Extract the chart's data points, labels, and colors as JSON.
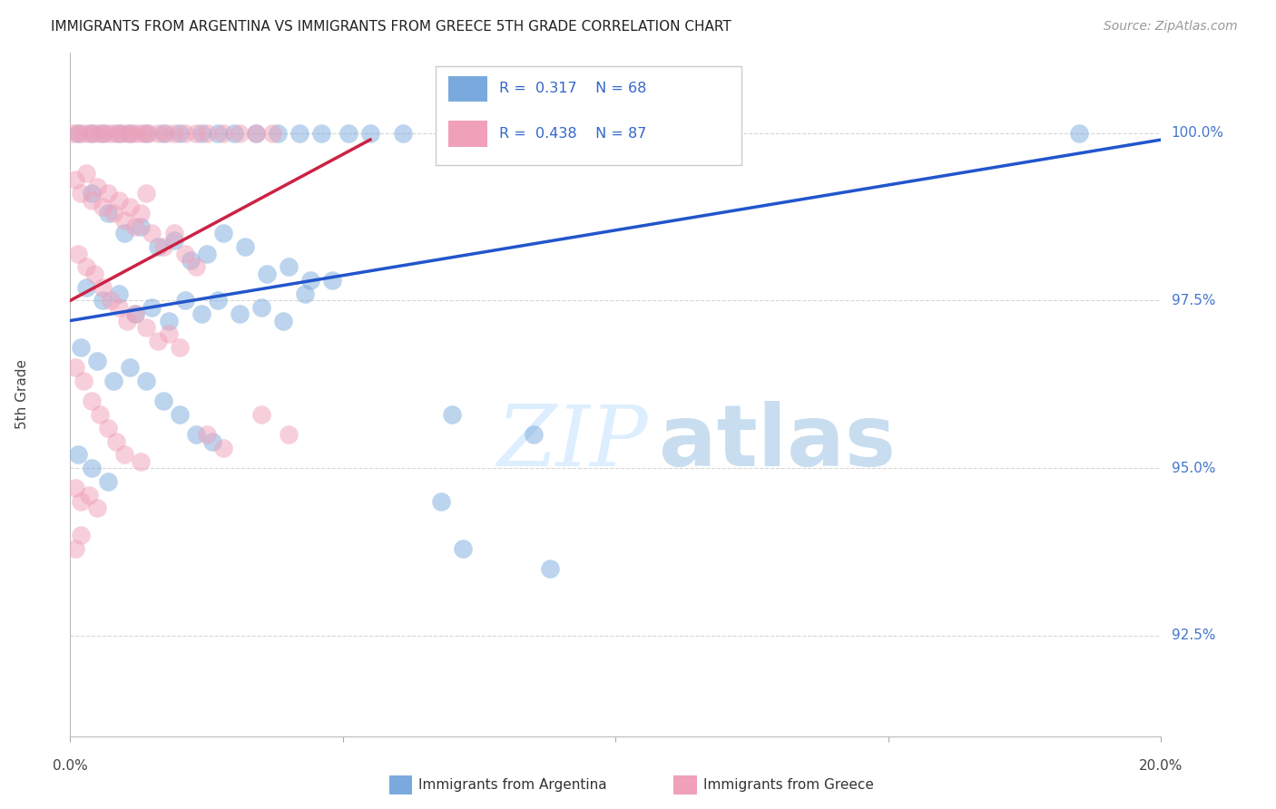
{
  "title": "IMMIGRANTS FROM ARGENTINA VS IMMIGRANTS FROM GREECE 5TH GRADE CORRELATION CHART",
  "source": "Source: ZipAtlas.com",
  "ylabel": "5th Grade",
  "yaxis_labels": [
    "92.5%",
    "95.0%",
    "97.5%",
    "100.0%"
  ],
  "yaxis_values": [
    92.5,
    95.0,
    97.5,
    100.0
  ],
  "xlim": [
    0.0,
    20.0
  ],
  "ylim": [
    91.0,
    101.2
  ],
  "legend_label_blue": "Immigrants from Argentina",
  "legend_label_pink": "Immigrants from Greece",
  "legend_R_blue": "R =  0.317",
  "legend_N_blue": "N = 68",
  "legend_R_pink": "R =  0.438",
  "legend_N_pink": "N = 87",
  "blue_scatter": [
    [
      0.15,
      100.0
    ],
    [
      0.4,
      100.0
    ],
    [
      0.6,
      100.0
    ],
    [
      0.9,
      100.0
    ],
    [
      1.1,
      100.0
    ],
    [
      1.4,
      100.0
    ],
    [
      1.7,
      100.0
    ],
    [
      2.0,
      100.0
    ],
    [
      2.4,
      100.0
    ],
    [
      2.7,
      100.0
    ],
    [
      3.0,
      100.0
    ],
    [
      3.4,
      100.0
    ],
    [
      3.8,
      100.0
    ],
    [
      4.2,
      100.0
    ],
    [
      4.6,
      100.0
    ],
    [
      5.1,
      100.0
    ],
    [
      5.5,
      100.0
    ],
    [
      6.1,
      100.0
    ],
    [
      18.5,
      100.0
    ],
    [
      0.4,
      99.1
    ],
    [
      0.7,
      98.8
    ],
    [
      1.0,
      98.5
    ],
    [
      1.3,
      98.6
    ],
    [
      1.6,
      98.3
    ],
    [
      1.9,
      98.4
    ],
    [
      2.2,
      98.1
    ],
    [
      2.5,
      98.2
    ],
    [
      2.8,
      98.5
    ],
    [
      3.2,
      98.3
    ],
    [
      3.6,
      97.9
    ],
    [
      4.0,
      98.0
    ],
    [
      4.4,
      97.8
    ],
    [
      4.8,
      97.8
    ],
    [
      0.3,
      97.7
    ],
    [
      0.6,
      97.5
    ],
    [
      0.9,
      97.6
    ],
    [
      1.2,
      97.3
    ],
    [
      1.5,
      97.4
    ],
    [
      1.8,
      97.2
    ],
    [
      2.1,
      97.5
    ],
    [
      2.4,
      97.3
    ],
    [
      2.7,
      97.5
    ],
    [
      3.1,
      97.3
    ],
    [
      3.5,
      97.4
    ],
    [
      3.9,
      97.2
    ],
    [
      4.3,
      97.6
    ],
    [
      0.2,
      96.8
    ],
    [
      0.5,
      96.6
    ],
    [
      0.8,
      96.3
    ],
    [
      1.1,
      96.5
    ],
    [
      1.4,
      96.3
    ],
    [
      1.7,
      96.0
    ],
    [
      2.0,
      95.8
    ],
    [
      2.3,
      95.5
    ],
    [
      2.6,
      95.4
    ],
    [
      0.15,
      95.2
    ],
    [
      0.4,
      95.0
    ],
    [
      0.7,
      94.8
    ],
    [
      7.0,
      95.8
    ],
    [
      8.5,
      95.5
    ],
    [
      7.2,
      93.8
    ],
    [
      8.8,
      93.5
    ],
    [
      6.8,
      94.5
    ]
  ],
  "pink_scatter": [
    [
      0.05,
      100.0
    ],
    [
      0.15,
      100.0
    ],
    [
      0.25,
      100.0
    ],
    [
      0.35,
      100.0
    ],
    [
      0.45,
      100.0
    ],
    [
      0.55,
      100.0
    ],
    [
      0.65,
      100.0
    ],
    [
      0.75,
      100.0
    ],
    [
      0.85,
      100.0
    ],
    [
      0.95,
      100.0
    ],
    [
      1.05,
      100.0
    ],
    [
      1.15,
      100.0
    ],
    [
      1.25,
      100.0
    ],
    [
      1.35,
      100.0
    ],
    [
      1.45,
      100.0
    ],
    [
      1.6,
      100.0
    ],
    [
      1.75,
      100.0
    ],
    [
      1.9,
      100.0
    ],
    [
      2.1,
      100.0
    ],
    [
      2.3,
      100.0
    ],
    [
      2.5,
      100.0
    ],
    [
      2.8,
      100.0
    ],
    [
      3.1,
      100.0
    ],
    [
      3.4,
      100.0
    ],
    [
      3.7,
      100.0
    ],
    [
      0.1,
      99.3
    ],
    [
      0.2,
      99.1
    ],
    [
      0.3,
      99.4
    ],
    [
      0.4,
      99.0
    ],
    [
      0.5,
      99.2
    ],
    [
      0.6,
      98.9
    ],
    [
      0.7,
      99.1
    ],
    [
      0.8,
      98.8
    ],
    [
      0.9,
      99.0
    ],
    [
      1.0,
      98.7
    ],
    [
      1.1,
      98.9
    ],
    [
      1.2,
      98.6
    ],
    [
      1.3,
      98.8
    ],
    [
      1.4,
      99.1
    ],
    [
      1.5,
      98.5
    ],
    [
      1.7,
      98.3
    ],
    [
      1.9,
      98.5
    ],
    [
      2.1,
      98.2
    ],
    [
      2.3,
      98.0
    ],
    [
      0.15,
      98.2
    ],
    [
      0.3,
      98.0
    ],
    [
      0.45,
      97.9
    ],
    [
      0.6,
      97.7
    ],
    [
      0.75,
      97.5
    ],
    [
      0.9,
      97.4
    ],
    [
      1.05,
      97.2
    ],
    [
      1.2,
      97.3
    ],
    [
      1.4,
      97.1
    ],
    [
      1.6,
      96.9
    ],
    [
      1.8,
      97.0
    ],
    [
      2.0,
      96.8
    ],
    [
      0.1,
      96.5
    ],
    [
      0.25,
      96.3
    ],
    [
      0.4,
      96.0
    ],
    [
      0.55,
      95.8
    ],
    [
      0.7,
      95.6
    ],
    [
      0.85,
      95.4
    ],
    [
      1.0,
      95.2
    ],
    [
      1.3,
      95.1
    ],
    [
      0.1,
      94.7
    ],
    [
      0.2,
      94.5
    ],
    [
      0.35,
      94.6
    ],
    [
      0.5,
      94.4
    ],
    [
      0.1,
      93.8
    ],
    [
      0.2,
      94.0
    ],
    [
      2.5,
      95.5
    ],
    [
      2.8,
      95.3
    ],
    [
      3.5,
      95.8
    ],
    [
      4.0,
      95.5
    ]
  ],
  "blue_line": {
    "x0": 0.0,
    "x1": 20.0,
    "y0": 97.2,
    "y1": 99.9
  },
  "pink_line": {
    "x0": 0.0,
    "x1": 5.5,
    "y0": 97.5,
    "y1": 99.9
  },
  "background_color": "#ffffff",
  "blue_color": "#7aaadd",
  "pink_color": "#f0a0b8",
  "blue_line_color": "#2255cc",
  "pink_line_color": "#cc2244",
  "grid_color": "#cccccc",
  "watermark_color": "#ddeeff"
}
